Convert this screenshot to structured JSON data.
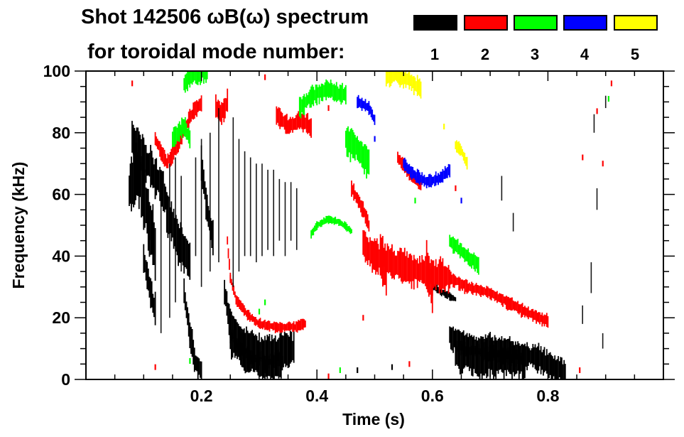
{
  "chart_data": {
    "type": "heatmap",
    "title_line1": "Shot 142506 ωB(ω) spectrum",
    "title_line2": "for toroidal mode number:",
    "xlabel": "Time (s)",
    "ylabel": "Frequency (kHz)",
    "xlim": [
      0.0,
      1.0
    ],
    "ylim": [
      0,
      100
    ],
    "x_major_ticks": [
      0.2,
      0.4,
      0.6,
      0.8
    ],
    "x_tick_labels": [
      "0.2",
      "0.4",
      "0.6",
      "0.8"
    ],
    "x_minor_step": 0.05,
    "y_major_ticks": [
      0,
      20,
      40,
      60,
      80,
      100
    ],
    "y_tick_labels": [
      "0",
      "20",
      "40",
      "60",
      "80",
      "100"
    ],
    "y_minor_step": 5,
    "grid": false,
    "legend_placement": "top-right",
    "legend": [
      {
        "mode": "1",
        "color": "#000000"
      },
      {
        "mode": "2",
        "color": "#ff0000"
      },
      {
        "mode": "3",
        "color": "#00ff00"
      },
      {
        "mode": "4",
        "color": "#0000ff"
      },
      {
        "mode": "5",
        "color": "#ffff00"
      }
    ],
    "traces": [
      {
        "mode": 1,
        "halfwidth_khz": 9,
        "points": [
          [
            0.075,
            62
          ],
          [
            0.09,
            68
          ],
          [
            0.1,
            60
          ],
          [
            0.11,
            50
          ],
          [
            0.12,
            42
          ]
        ]
      },
      {
        "mode": 1,
        "halfwidth_khz": 6,
        "points": [
          [
            0.08,
            78
          ],
          [
            0.1,
            72
          ],
          [
            0.12,
            66
          ],
          [
            0.14,
            58
          ]
        ]
      },
      {
        "mode": 1,
        "halfwidth_khz": 5,
        "points": [
          [
            0.1,
            40
          ],
          [
            0.11,
            30
          ],
          [
            0.12,
            22
          ]
        ]
      },
      {
        "mode": 1,
        "halfwidth_khz": 6,
        "points": [
          [
            0.14,
            55
          ],
          [
            0.16,
            45
          ],
          [
            0.18,
            38
          ]
        ]
      },
      {
        "mode": 1,
        "halfwidth_khz": 4,
        "points": [
          [
            0.17,
            28
          ],
          [
            0.18,
            15
          ],
          [
            0.19,
            5
          ],
          [
            0.2,
            3
          ]
        ]
      },
      {
        "mode": 1,
        "halfwidth_khz": 5,
        "points": [
          [
            0.2,
            70
          ],
          [
            0.21,
            55
          ],
          [
            0.22,
            45
          ]
        ]
      },
      {
        "mode": 1,
        "halfwidth_khz": 5,
        "points": [
          [
            0.24,
            28
          ],
          [
            0.25,
            18
          ],
          [
            0.27,
            12
          ],
          [
            0.3,
            9
          ],
          [
            0.33,
            9
          ],
          [
            0.36,
            10
          ]
        ]
      },
      {
        "mode": 1,
        "halfwidth_khz": 4,
        "points": [
          [
            0.25,
            12
          ],
          [
            0.28,
            6
          ],
          [
            0.31,
            4
          ],
          [
            0.34,
            5
          ]
        ]
      },
      {
        "mode": 1,
        "halfwidth_khz": 4,
        "points": [
          [
            0.63,
            14
          ],
          [
            0.66,
            11
          ],
          [
            0.7,
            10
          ],
          [
            0.74,
            9
          ],
          [
            0.78,
            7
          ],
          [
            0.81,
            4
          ],
          [
            0.83,
            2
          ]
        ]
      },
      {
        "mode": 1,
        "halfwidth_khz": 5,
        "points": [
          [
            0.64,
            8
          ],
          [
            0.68,
            6
          ],
          [
            0.72,
            6
          ],
          [
            0.76,
            5
          ]
        ]
      },
      {
        "mode": 1,
        "halfwidth_khz": 1.2,
        "points": [
          [
            0.6,
            30
          ],
          [
            0.62,
            28
          ],
          [
            0.64,
            26
          ]
        ]
      },
      {
        "mode": 2,
        "halfwidth_khz": 2.5,
        "points": [
          [
            0.12,
            78
          ],
          [
            0.14,
            70
          ],
          [
            0.16,
            76
          ],
          [
            0.18,
            85
          ],
          [
            0.2,
            90
          ]
        ]
      },
      {
        "mode": 2,
        "halfwidth_khz": 3.5,
        "points": [
          [
            0.225,
            88
          ],
          [
            0.235,
            86
          ],
          [
            0.245,
            90
          ]
        ]
      },
      {
        "mode": 2,
        "halfwidth_khz": 1.6,
        "points": [
          [
            0.245,
            45
          ],
          [
            0.25,
            33
          ],
          [
            0.26,
            26
          ],
          [
            0.28,
            21
          ],
          [
            0.3,
            18
          ],
          [
            0.33,
            17
          ],
          [
            0.36,
            17
          ],
          [
            0.38,
            18
          ]
        ]
      },
      {
        "mode": 2,
        "halfwidth_khz": 3,
        "points": [
          [
            0.33,
            86
          ],
          [
            0.35,
            82
          ],
          [
            0.37,
            84
          ],
          [
            0.39,
            82
          ]
        ]
      },
      {
        "mode": 2,
        "halfwidth_khz": 5,
        "points": [
          [
            0.48,
            44
          ],
          [
            0.5,
            40
          ],
          [
            0.53,
            38
          ],
          [
            0.56,
            36
          ],
          [
            0.6,
            34
          ],
          [
            0.63,
            33
          ]
        ]
      },
      {
        "mode": 2,
        "halfwidth_khz": 8,
        "points": [
          [
            0.51,
            40
          ],
          [
            0.52,
            34
          ]
        ]
      },
      {
        "mode": 2,
        "halfwidth_khz": 7,
        "points": [
          [
            0.59,
            36
          ],
          [
            0.6,
            30
          ]
        ]
      },
      {
        "mode": 2,
        "halfwidth_khz": 2,
        "points": [
          [
            0.63,
            33
          ],
          [
            0.66,
            30
          ],
          [
            0.7,
            28
          ],
          [
            0.73,
            25
          ],
          [
            0.76,
            22
          ],
          [
            0.8,
            19
          ]
        ]
      },
      {
        "mode": 2,
        "halfwidth_khz": 2.5,
        "points": [
          [
            0.46,
            62
          ],
          [
            0.48,
            55
          ],
          [
            0.49,
            50
          ]
        ]
      },
      {
        "mode": 2,
        "halfwidth_khz": 2,
        "points": [
          [
            0.54,
            72
          ],
          [
            0.56,
            67
          ],
          [
            0.58,
            63
          ]
        ]
      },
      {
        "mode": 3,
        "halfwidth_khz": 3,
        "points": [
          [
            0.17,
            96
          ],
          [
            0.18,
            98
          ],
          [
            0.21,
            100
          ]
        ]
      },
      {
        "mode": 3,
        "halfwidth_khz": 3,
        "points": [
          [
            0.15,
            78
          ],
          [
            0.17,
            82
          ],
          [
            0.18,
            78
          ]
        ]
      },
      {
        "mode": 3,
        "halfwidth_khz": 3,
        "points": [
          [
            0.37,
            88
          ],
          [
            0.39,
            92
          ],
          [
            0.42,
            94
          ],
          [
            0.45,
            92
          ]
        ]
      },
      {
        "mode": 3,
        "halfwidth_khz": 5,
        "points": [
          [
            0.45,
            78
          ],
          [
            0.47,
            75
          ],
          [
            0.49,
            70
          ]
        ]
      },
      {
        "mode": 3,
        "halfwidth_khz": 1.2,
        "points": [
          [
            0.39,
            47
          ],
          [
            0.4,
            50
          ],
          [
            0.42,
            52
          ],
          [
            0.44,
            51
          ],
          [
            0.46,
            48
          ]
        ]
      },
      {
        "mode": 3,
        "halfwidth_khz": 2.5,
        "points": [
          [
            0.63,
            45
          ],
          [
            0.66,
            40
          ],
          [
            0.68,
            37
          ]
        ]
      },
      {
        "mode": 4,
        "halfwidth_khz": 2,
        "points": [
          [
            0.47,
            90
          ],
          [
            0.49,
            88
          ],
          [
            0.5,
            84
          ]
        ]
      },
      {
        "mode": 4,
        "halfwidth_khz": 2,
        "points": [
          [
            0.55,
            70
          ],
          [
            0.57,
            66
          ],
          [
            0.59,
            64
          ],
          [
            0.61,
            65
          ],
          [
            0.63,
            68
          ]
        ]
      },
      {
        "mode": 5,
        "halfwidth_khz": 3,
        "points": [
          [
            0.52,
            98
          ],
          [
            0.54,
            99
          ],
          [
            0.56,
            97
          ],
          [
            0.58,
            94
          ]
        ]
      },
      {
        "mode": 5,
        "halfwidth_khz": 2,
        "points": [
          [
            0.64,
            76
          ],
          [
            0.65,
            74
          ],
          [
            0.66,
            70
          ]
        ]
      }
    ],
    "columns": [
      {
        "mode": 1,
        "t": 0.13,
        "f": [
          15,
          62
        ]
      },
      {
        "mode": 1,
        "t": 0.145,
        "f": [
          20,
          70
        ]
      },
      {
        "mode": 1,
        "t": 0.155,
        "f": [
          25,
          72
        ]
      },
      {
        "mode": 1,
        "t": 0.165,
        "f": [
          35,
          66
        ]
      },
      {
        "mode": 1,
        "t": 0.19,
        "f": [
          40,
          72
        ]
      },
      {
        "mode": 1,
        "t": 0.2,
        "f": [
          30,
          78
        ]
      },
      {
        "mode": 1,
        "t": 0.215,
        "f": [
          35,
          80
        ]
      },
      {
        "mode": 1,
        "t": 0.23,
        "f": [
          38,
          88
        ]
      },
      {
        "mode": 1,
        "t": 0.255,
        "f": [
          30,
          85
        ]
      },
      {
        "mode": 1,
        "t": 0.265,
        "f": [
          35,
          78
        ]
      },
      {
        "mode": 1,
        "t": 0.275,
        "f": [
          40,
          74
        ]
      },
      {
        "mode": 1,
        "t": 0.285,
        "f": [
          40,
          72
        ]
      },
      {
        "mode": 1,
        "t": 0.295,
        "f": [
          38,
          70
        ]
      },
      {
        "mode": 1,
        "t": 0.305,
        "f": [
          40,
          70
        ]
      },
      {
        "mode": 1,
        "t": 0.315,
        "f": [
          42,
          68
        ]
      },
      {
        "mode": 1,
        "t": 0.325,
        "f": [
          40,
          68
        ]
      },
      {
        "mode": 1,
        "t": 0.335,
        "f": [
          45,
          65
        ]
      },
      {
        "mode": 1,
        "t": 0.345,
        "f": [
          40,
          64
        ]
      },
      {
        "mode": 1,
        "t": 0.355,
        "f": [
          45,
          64
        ]
      },
      {
        "mode": 1,
        "t": 0.365,
        "f": [
          42,
          62
        ]
      },
      {
        "mode": 1,
        "t": 0.86,
        "f": [
          18,
          24
        ]
      },
      {
        "mode": 1,
        "t": 0.875,
        "f": [
          28,
          38
        ]
      },
      {
        "mode": 1,
        "t": 0.885,
        "f": [
          55,
          62
        ]
      },
      {
        "mode": 1,
        "t": 0.895,
        "f": [
          10,
          15
        ]
      },
      {
        "mode": 1,
        "t": 0.9,
        "f": [
          88,
          92
        ]
      },
      {
        "mode": 1,
        "t": 0.74,
        "f": [
          48,
          54
        ]
      },
      {
        "mode": 1,
        "t": 0.72,
        "f": [
          58,
          66
        ]
      },
      {
        "mode": 1,
        "t": 0.88,
        "f": [
          80,
          86
        ]
      }
    ],
    "speckles": [
      {
        "mode": 2,
        "t": 0.08,
        "f": 96
      },
      {
        "mode": 2,
        "t": 0.91,
        "f": 96
      },
      {
        "mode": 2,
        "t": 0.885,
        "f": 87
      },
      {
        "mode": 2,
        "t": 0.895,
        "f": 70
      },
      {
        "mode": 3,
        "t": 0.905,
        "f": 91
      },
      {
        "mode": 2,
        "t": 0.42,
        "f": 88
      },
      {
        "mode": 2,
        "t": 0.31,
        "f": 98
      },
      {
        "mode": 4,
        "t": 0.5,
        "f": 78
      },
      {
        "mode": 2,
        "t": 0.56,
        "f": 5
      },
      {
        "mode": 2,
        "t": 0.12,
        "f": 4
      },
      {
        "mode": 3,
        "t": 0.18,
        "f": 6
      },
      {
        "mode": 2,
        "t": 0.64,
        "f": 62
      },
      {
        "mode": 4,
        "t": 0.65,
        "f": 58
      },
      {
        "mode": 3,
        "t": 0.57,
        "f": 58
      },
      {
        "mode": 2,
        "t": 0.48,
        "f": 20
      },
      {
        "mode": 3,
        "t": 0.44,
        "f": 3
      },
      {
        "mode": 2,
        "t": 0.42,
        "f": 1
      },
      {
        "mode": 1,
        "t": 0.47,
        "f": 3
      },
      {
        "mode": 1,
        "t": 0.53,
        "f": 4
      },
      {
        "mode": 2,
        "t": 0.855,
        "f": 3
      },
      {
        "mode": 2,
        "t": 0.86,
        "f": 72
      },
      {
        "mode": 5,
        "t": 0.62,
        "f": 82
      },
      {
        "mode": 3,
        "t": 0.3,
        "f": 22
      },
      {
        "mode": 3,
        "t": 0.31,
        "f": 25
      }
    ]
  }
}
